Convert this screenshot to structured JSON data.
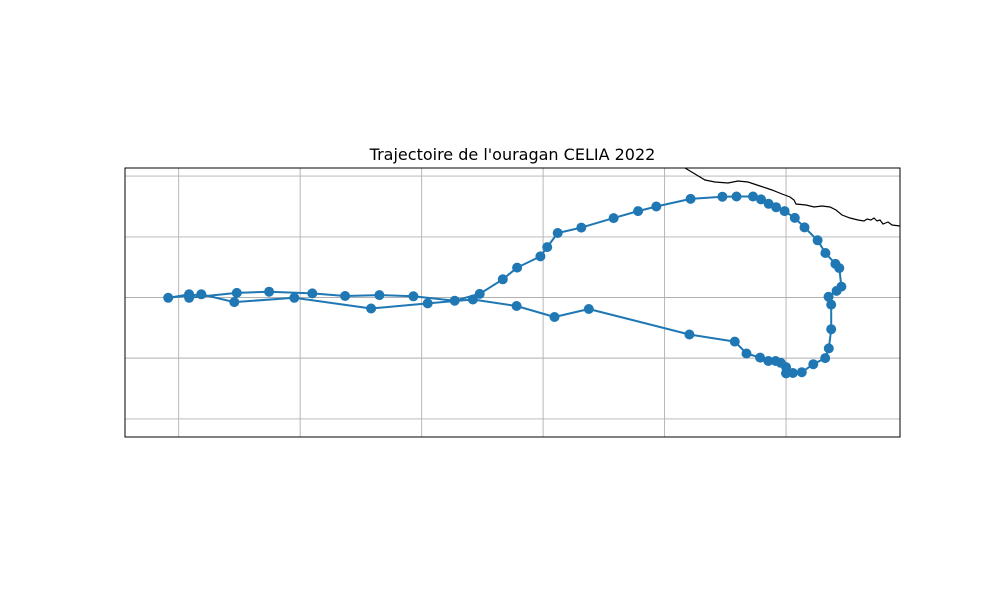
{
  "chart_data": {
    "type": "line",
    "title": "Trajectoire de l'ouragan CELIA 2022",
    "xlabel": "",
    "ylabel": "",
    "projection": "PlateCarree",
    "xlim": [
      -121.45,
      -89.55
    ],
    "ylim": [
      7.55,
      18.6
    ],
    "grid": true,
    "gridlines_x": [
      -119.24,
      -114.24,
      -109.24,
      -104.24,
      -99.24,
      -94.24
    ],
    "gridlines_y": [
      8.29,
      10.79,
      13.28,
      15.77,
      18.27
    ],
    "tick_labels_shown": false,
    "series": [
      {
        "marker": "o",
        "color": "#1f77b4",
        "x": [
          -94.24,
          -94.24,
          -94.46,
          -94.67,
          -94.97,
          -95.31,
          -95.87,
          -96.35,
          -98.22,
          -102.36,
          -103.77,
          -105.33,
          -107.13,
          -108.99,
          -111.32,
          -114.48,
          -116.95,
          -118.31,
          -119.67,
          -118.81,
          -118.81,
          -116.85,
          -115.52,
          -113.74,
          -112.39,
          -110.98,
          -109.58,
          -107.88,
          -106.85,
          -105.9,
          -105.31,
          -104.35,
          -104.07,
          -103.64,
          -102.67,
          -101.34,
          -100.33,
          -99.58,
          -98.17,
          -96.86,
          -96.28,
          -95.6,
          -95.27,
          -94.96,
          -94.65,
          -94.3,
          -93.88,
          -93.48,
          -92.94,
          -92.62,
          -92.21,
          -92.05,
          -91.96,
          -92.16,
          -92.49,
          -92.38,
          -92.38,
          -92.48,
          -92.63,
          -93.12,
          -93.59,
          -93.96,
          -94.24
        ],
        "y": [
          10.17,
          10.42,
          10.6,
          10.67,
          10.67,
          10.81,
          10.98,
          11.47,
          11.76,
          12.81,
          12.48,
          12.93,
          13.2,
          13.04,
          12.83,
          13.27,
          13.09,
          13.41,
          13.27,
          13.41,
          13.27,
          13.47,
          13.52,
          13.45,
          13.34,
          13.38,
          13.33,
          13.15,
          13.43,
          14.03,
          14.51,
          14.97,
          15.35,
          15.93,
          16.15,
          16.54,
          16.83,
          17.02,
          17.33,
          17.42,
          17.43,
          17.43,
          17.31,
          17.13,
          16.99,
          16.83,
          16.55,
          16.16,
          15.63,
          15.11,
          14.66,
          14.49,
          13.73,
          13.55,
          13.31,
          12.99,
          11.98,
          11.19,
          10.79,
          10.54,
          10.21,
          10.18,
          10.17
        ]
      }
    ]
  }
}
